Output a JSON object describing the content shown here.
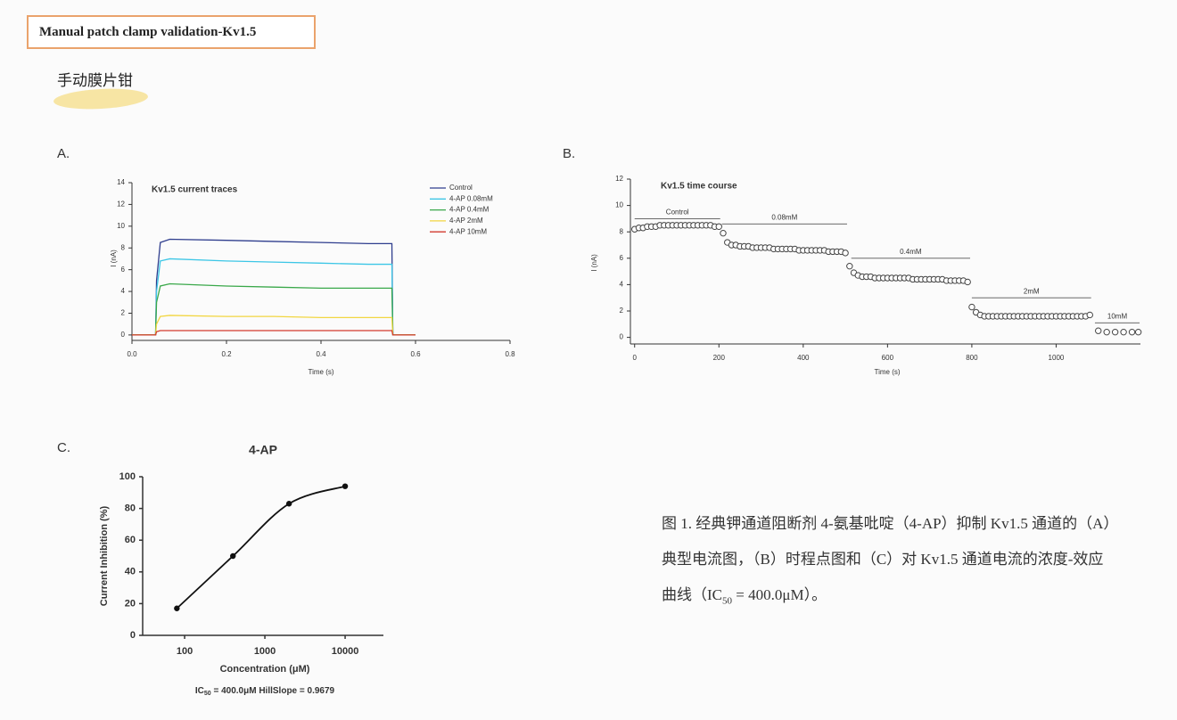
{
  "header": {
    "title": "Manual patch clamp validation-Kv1.5",
    "subtitle": "手动膜片钳"
  },
  "panel_labels": [
    "A.",
    "B.",
    "C."
  ],
  "caption": {
    "before": "图 1. 经典钾通道阻断剂 4-氨基吡啶（4-AP）抑制 Kv1.5 通道的（A）典型电流图，（B）时程点图和（C）对 Kv1.5 通道电流的浓度-效应曲线（IC",
    "sub": "50",
    "after": " = 400.0μM）。"
  },
  "chart_data": [
    {
      "type": "line",
      "title": "Kv1.5 current traces",
      "x_label": "Time (s)",
      "y_label": "I (nA)",
      "legend": "upper right",
      "x": [
        0,
        0.05,
        0.052,
        0.06,
        0.08,
        0.2,
        0.3,
        0.4,
        0.5,
        0.55,
        0.552,
        0.6
      ],
      "series": [
        {
          "name": "Control",
          "color": "#2f3e8e",
          "values": [
            0,
            0,
            5,
            8.5,
            8.8,
            8.7,
            8.6,
            8.5,
            8.4,
            8.4,
            0,
            0
          ]
        },
        {
          "name": "4-AP 0.08mM",
          "color": "#3cc6e6",
          "values": [
            0,
            0,
            4,
            6.8,
            7.0,
            6.8,
            6.7,
            6.6,
            6.5,
            6.5,
            0,
            0
          ]
        },
        {
          "name": "4-AP 0.4mM",
          "color": "#3aa84a",
          "values": [
            0,
            0,
            3,
            4.5,
            4.7,
            4.5,
            4.4,
            4.3,
            4.3,
            4.3,
            0,
            0
          ]
        },
        {
          "name": "4-AP 2mM",
          "color": "#f2d641",
          "values": [
            0,
            0,
            1,
            1.7,
            1.8,
            1.7,
            1.7,
            1.6,
            1.6,
            1.6,
            0,
            0
          ]
        },
        {
          "name": "4-AP 10mM",
          "color": "#d23a2e",
          "values": [
            0,
            0,
            0.3,
            0.4,
            0.4,
            0.4,
            0.4,
            0.4,
            0.4,
            0.4,
            0,
            0
          ]
        }
      ],
      "xlim": [
        0,
        0.8
      ],
      "xticks": [
        {
          "value": 0,
          "label": "0.0"
        },
        0.2,
        0.4,
        0.6,
        0.8
      ],
      "ylim": [
        -0.5,
        14
      ],
      "yticks": [
        0,
        2,
        4,
        6,
        8,
        10,
        12,
        14
      ]
    },
    {
      "type": "scatter",
      "title": "Kv1.5 time course",
      "x_label": "Time (s)",
      "y_label": "I (nA)",
      "x": [
        0,
        10,
        20,
        30,
        40,
        50,
        60,
        70,
        80,
        90,
        100,
        110,
        120,
        130,
        140,
        150,
        160,
        170,
        180,
        190,
        200,
        210,
        220,
        230,
        240,
        250,
        260,
        270,
        280,
        290,
        300,
        310,
        320,
        330,
        340,
        350,
        360,
        370,
        380,
        390,
        400,
        410,
        420,
        430,
        440,
        450,
        460,
        470,
        480,
        490,
        500,
        510,
        520,
        530,
        540,
        550,
        560,
        570,
        580,
        590,
        600,
        610,
        620,
        630,
        640,
        650,
        660,
        670,
        680,
        690,
        700,
        710,
        720,
        730,
        740,
        750,
        760,
        770,
        780,
        790,
        800,
        810,
        820,
        830,
        840,
        850,
        860,
        870,
        880,
        890,
        900,
        910,
        920,
        930,
        940,
        950,
        960,
        970,
        980,
        990,
        1000,
        1010,
        1020,
        1030,
        1040,
        1050,
        1060,
        1070,
        1080,
        1100,
        1120,
        1140,
        1160,
        1180,
        1195
      ],
      "values": [
        8.2,
        8.3,
        8.3,
        8.4,
        8.4,
        8.4,
        8.5,
        8.5,
        8.5,
        8.5,
        8.5,
        8.5,
        8.5,
        8.5,
        8.5,
        8.5,
        8.5,
        8.5,
        8.5,
        8.4,
        8.4,
        7.9,
        7.2,
        7.0,
        7.0,
        6.9,
        6.9,
        6.9,
        6.8,
        6.8,
        6.8,
        6.8,
        6.8,
        6.7,
        6.7,
        6.7,
        6.7,
        6.7,
        6.7,
        6.6,
        6.6,
        6.6,
        6.6,
        6.6,
        6.6,
        6.6,
        6.5,
        6.5,
        6.5,
        6.5,
        6.4,
        5.4,
        4.9,
        4.7,
        4.6,
        4.6,
        4.6,
        4.5,
        4.5,
        4.5,
        4.5,
        4.5,
        4.5,
        4.5,
        4.5,
        4.5,
        4.4,
        4.4,
        4.4,
        4.4,
        4.4,
        4.4,
        4.4,
        4.4,
        4.3,
        4.3,
        4.3,
        4.3,
        4.3,
        4.2,
        2.3,
        1.9,
        1.7,
        1.6,
        1.6,
        1.6,
        1.6,
        1.6,
        1.6,
        1.6,
        1.6,
        1.6,
        1.6,
        1.6,
        1.6,
        1.6,
        1.6,
        1.6,
        1.6,
        1.6,
        1.6,
        1.6,
        1.6,
        1.6,
        1.6,
        1.6,
        1.6,
        1.6,
        1.7,
        0.5,
        0.4,
        0.4,
        0.4,
        0.4,
        0.4
      ],
      "color": "#444444",
      "annotations": [
        {
          "text": "Control",
          "x": [
            0,
            203
          ],
          "y": 9.0
        },
        {
          "text": "0.08mM",
          "x": [
            207,
            504
          ],
          "y": 8.6
        },
        {
          "text": "0.4mM",
          "x": [
            514,
            796
          ],
          "y": 6.0
        },
        {
          "text": "2mM",
          "x": [
            800,
            1083
          ],
          "y": 3.0
        },
        {
          "text": "10mM",
          "x": [
            1092,
            1198
          ],
          "y": 1.1
        }
      ],
      "xlim": [
        -10,
        1200
      ],
      "xticks": [
        0,
        200,
        400,
        600,
        800,
        1000
      ],
      "ylim": [
        -0.5,
        12
      ],
      "yticks": [
        0,
        2,
        4,
        6,
        8,
        10,
        12
      ]
    },
    {
      "type": "line",
      "title": "4-AP",
      "x_label": "Concentration (μM)",
      "y_label": "Current Inhibition (%)",
      "x": [
        80,
        400,
        2000,
        10000
      ],
      "values": [
        17,
        50,
        83,
        94
      ],
      "color": "#111111",
      "markers": true,
      "smooth": true,
      "xscale": "log",
      "xlim": [
        30,
        30000
      ],
      "xticks": [
        100,
        1000,
        10000
      ],
      "ylim": [
        0,
        100
      ],
      "yticks": [
        0,
        20,
        40,
        60,
        80,
        100
      ],
      "note": {
        "before": "IC",
        "sub": "50",
        "after": " = 400.0μM HillSlope = 0.9679"
      }
    }
  ]
}
